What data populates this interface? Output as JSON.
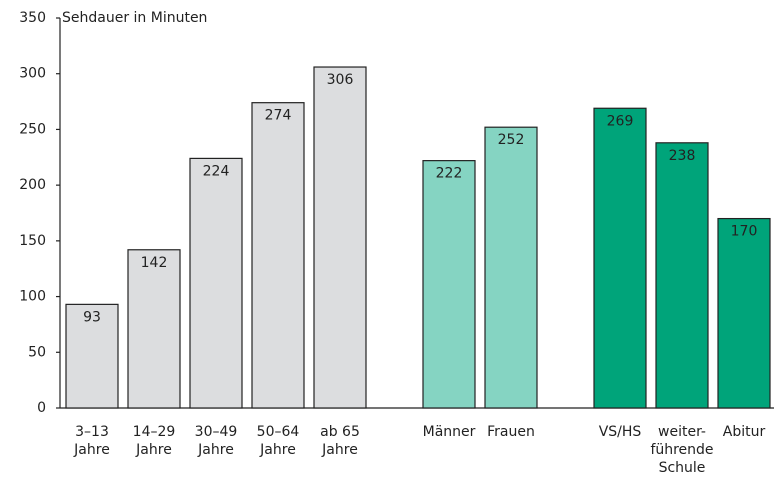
{
  "chart_data": {
    "type": "bar",
    "title": "Sehdauer in Minuten",
    "categories": [
      [
        "3–13",
        "Jahre"
      ],
      [
        "14–29",
        "Jahre"
      ],
      [
        "30–49",
        "Jahre"
      ],
      [
        "50–64",
        "Jahre"
      ],
      [
        "ab 65",
        "Jahre"
      ],
      [
        "Männer"
      ],
      [
        "Frauen"
      ],
      [
        "VS/HS"
      ],
      [
        "weiter-",
        "führende",
        "Schule"
      ],
      [
        "Abitur"
      ]
    ],
    "values": [
      93,
      142,
      224,
      274,
      306,
      222,
      252,
      269,
      238,
      170
    ],
    "colors": [
      "#dcdddf",
      "#dcdddf",
      "#dcdddf",
      "#dcdddf",
      "#dcdddf",
      "#85d4c2",
      "#85d4c2",
      "#00a47a",
      "#00a47a",
      "#00a47a"
    ],
    "ylim": [
      0,
      350
    ],
    "yticks": [
      0,
      50,
      100,
      150,
      200,
      250,
      300,
      350
    ]
  }
}
